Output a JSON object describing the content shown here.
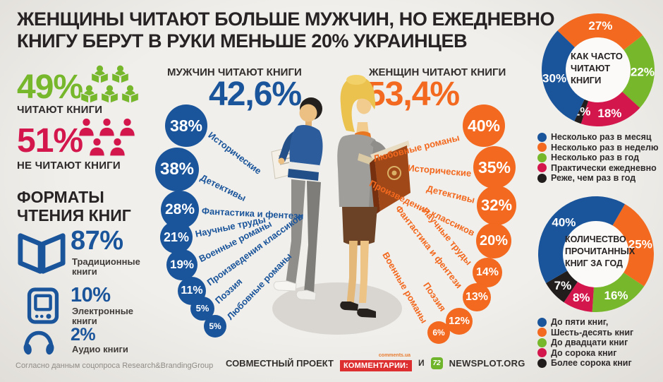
{
  "title": {
    "lines": [
      "ЖЕНЩИНЫ ЧИТАЮТ БОЛЬШЕ МУЖЧИН, НО ЕЖЕДНЕВНО",
      "КНИГУ БЕРУТ В РУКИ МЕНЬШЕ 20% УКРАИНЦЕВ"
    ]
  },
  "colors": {
    "blue": "#1a549a",
    "orange": "#f2691f",
    "green": "#76b72b",
    "red": "#d3164c",
    "black": "#211d1c"
  },
  "readers_split": {
    "read": {
      "pct": "49%",
      "label": "ЧИТАЮТ КНИГИ"
    },
    "not_read": {
      "pct": "51%",
      "label": "НЕ ЧИТАЮТ КНИГИ"
    }
  },
  "formats": {
    "heading_lines": [
      "ФОРМАТЫ",
      "ЧТЕНИЯ КНИГ"
    ],
    "items": [
      {
        "icon": "open-book-icon",
        "pct": "87%",
        "label_lines": [
          "Традиционные",
          "книги"
        ]
      },
      {
        "icon": "e-reader-icon",
        "pct": "10%",
        "label_lines": [
          "Электронные",
          "книги"
        ]
      },
      {
        "icon": "headphones-icon",
        "pct": "2%",
        "label_lines": [
          "Аудио книги"
        ]
      }
    ]
  },
  "men": {
    "header": "МУЖЧИН ЧИТАЮТ КНИГИ",
    "total": "42,6%",
    "genres": [
      {
        "pct": "38%",
        "label": "Исторические"
      },
      {
        "pct": "38%",
        "label": "Детективы"
      },
      {
        "pct": "28%",
        "label": "Фантастика и фентези"
      },
      {
        "pct": "21%",
        "label": "Научные труды"
      },
      {
        "pct": "19%",
        "label": "Военные романы"
      },
      {
        "pct": "11%",
        "label": "Произведения классиков"
      },
      {
        "pct": "5%",
        "label": "Поэзия"
      },
      {
        "pct": "5%",
        "label": "Любовные романы"
      }
    ]
  },
  "women": {
    "header": "ЖЕНЩИН ЧИТАЮТ КНИГИ",
    "total": "53,4%",
    "genres": [
      {
        "pct": "40%",
        "label": "Любовные романы"
      },
      {
        "pct": "35%",
        "label": "Исторические"
      },
      {
        "pct": "32%",
        "label": "Детективы"
      },
      {
        "pct": "20%",
        "label": "Произведения классиков"
      },
      {
        "pct": "14%",
        "label": "Научные труды"
      },
      {
        "pct": "13%",
        "label": "Фантастика и фентези"
      },
      {
        "pct": "12%",
        "label": "Поэзия"
      },
      {
        "pct": "6%",
        "label": "Военные романы"
      }
    ]
  },
  "chart_data": [
    {
      "type": "pie",
      "title_lines": [
        "КАК ЧАСТО",
        "ЧИТАЮТ",
        "КНИГИ"
      ],
      "legend_position": "bottom",
      "slices": [
        {
          "label": "Несколько раз в месяц",
          "value": 30,
          "color": "#1a549a"
        },
        {
          "label": "Несколько раз в неделю",
          "value": 27,
          "color": "#f2691f"
        },
        {
          "label": "Несколько раз в год",
          "value": 22,
          "color": "#76b72b"
        },
        {
          "label": "Практически ежедневно",
          "value": 18,
          "color": "#d3164c"
        },
        {
          "label": "Реже, чем раз в год",
          "value": 2,
          "color": "#211d1c"
        }
      ]
    },
    {
      "type": "pie",
      "title_lines": [
        "КОЛИЧЕСТВО",
        "ПРОЧИТАННЫХ",
        "КНИГ ЗА ГОД"
      ],
      "legend_position": "bottom",
      "slices": [
        {
          "label": "До пяти книг,",
          "value": 40,
          "color": "#1a549a"
        },
        {
          "label": "Шесть-десять книг",
          "value": 25,
          "color": "#f2691f"
        },
        {
          "label": "До двадцати книг",
          "value": 16,
          "color": "#76b72b"
        },
        {
          "label": "До сорока книг",
          "value": 8,
          "color": "#d3164c"
        },
        {
          "label": "Более сорока книг",
          "value": 7,
          "color": "#211d1c"
        }
      ]
    }
  ],
  "footer": {
    "source": "Согласно данным соцопроса Research&BrandingGroup",
    "project_label": "СОВМЕСТНЫЙ ПРОЕКТ",
    "partner1_badge": "КОММЕНТАРИИ:",
    "partner1_small": "comments.ua",
    "conjunction": "И",
    "partner2_logo": "72",
    "partner2": "NEWSPLOT.ORG"
  }
}
